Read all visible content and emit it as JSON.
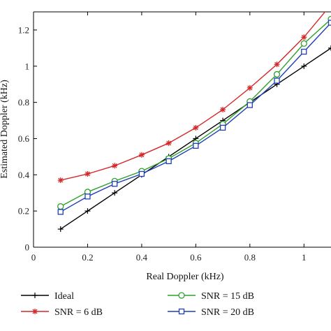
{
  "chart_data": {
    "type": "line",
    "xlabel": "Real Doppler (kHz)",
    "ylabel": "Estimated Doppler (kHz)",
    "xlim": [
      0,
      1.1
    ],
    "ylim": [
      0,
      1.3
    ],
    "x_ticks": [
      0,
      0.2,
      0.4,
      0.6,
      0.8,
      1
    ],
    "x_tick_labels": [
      "0",
      "0.2",
      "0.4",
      "0.6",
      "0.8",
      "1"
    ],
    "y_ticks": [
      0,
      0.2,
      0.4,
      0.6,
      0.8,
      1,
      1.2
    ],
    "y_tick_labels": [
      "0",
      "0.2",
      "0.4",
      "0.6",
      "0.8",
      "1",
      "1.2"
    ],
    "grid": false,
    "legend_position": "below",
    "x": [
      0.1,
      0.2,
      0.3,
      0.4,
      0.5,
      0.6,
      0.7,
      0.8,
      0.9,
      1.0,
      1.1
    ],
    "series": [
      {
        "name": "Ideal",
        "color": "#000000",
        "marker": "plus",
        "values": [
          0.1,
          0.2,
          0.3,
          0.4,
          0.5,
          0.6,
          0.7,
          0.8,
          0.9,
          1.0,
          1.1
        ]
      },
      {
        "name": "SNR = 6 dB",
        "color": "#d62728",
        "marker": "star",
        "values": [
          0.37,
          0.405,
          0.45,
          0.51,
          0.575,
          0.66,
          0.76,
          0.88,
          1.01,
          1.16,
          1.34
        ]
      },
      {
        "name": "SNR = 15 dB",
        "color": "#2ca02c",
        "marker": "circle",
        "values": [
          0.225,
          0.305,
          0.365,
          0.42,
          0.49,
          0.575,
          0.68,
          0.805,
          0.955,
          1.125,
          1.26
        ]
      },
      {
        "name": "SNR = 20 dB",
        "color": "#1f3fb5",
        "marker": "square",
        "values": [
          0.195,
          0.28,
          0.35,
          0.405,
          0.475,
          0.56,
          0.66,
          0.785,
          0.92,
          1.08,
          1.24
        ]
      }
    ]
  }
}
